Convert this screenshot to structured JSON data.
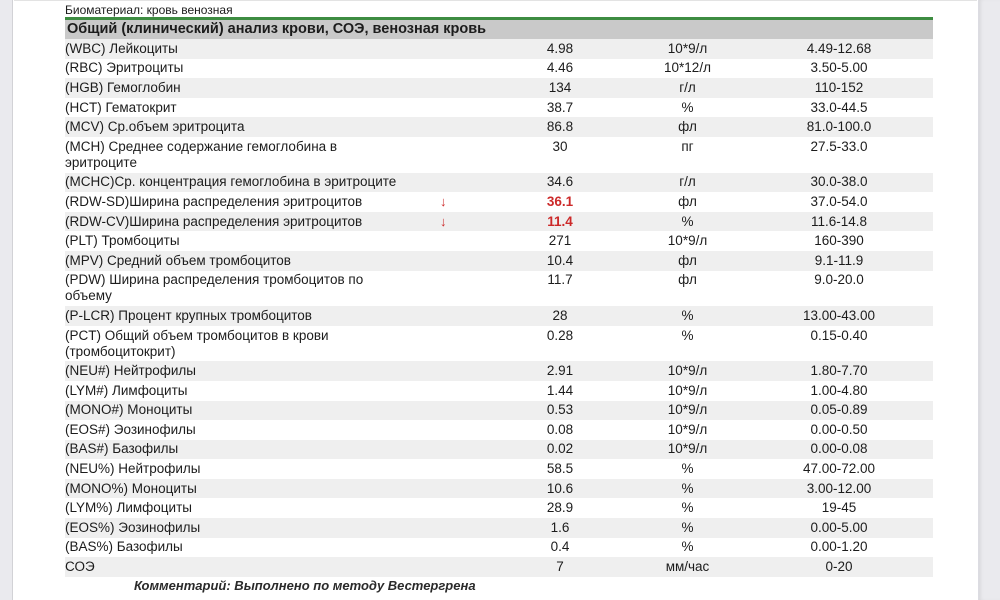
{
  "page": {
    "biomaterial": "Биоматериал: кровь венозная",
    "section_title": "Общий (клинический) анализ крови, СОЭ,  венозная кровь",
    "comment": "Комментарий: Выполнено по методу Вестергрена"
  },
  "colors": {
    "accent_green": "#3d8c41",
    "section_header_bg": "#c9c9c9",
    "row_stripe_bg": "#efefef",
    "abnormal_red": "#cc2929"
  },
  "table": {
    "rows": [
      {
        "name": "(WBC) Лейкоциты",
        "flag": "",
        "value": "4.98",
        "unit": "10*9/л",
        "range": "4.49-12.68",
        "abnormal": false
      },
      {
        "name": "(RBC) Эритроциты",
        "flag": "",
        "value": "4.46",
        "unit": "10*12/л",
        "range": "3.50-5.00",
        "abnormal": false
      },
      {
        "name": "(HGB) Гемоглобин",
        "flag": "",
        "value": "134",
        "unit": "г/л",
        "range": "110-152",
        "abnormal": false
      },
      {
        "name": "(HCT) Гематокрит",
        "flag": "",
        "value": "38.7",
        "unit": "%",
        "range": "33.0-44.5",
        "abnormal": false
      },
      {
        "name": "(MCV) Ср.объем эритроцита",
        "flag": "",
        "value": "86.8",
        "unit": "фл",
        "range": "81.0-100.0",
        "abnormal": false
      },
      {
        "name": "(MCH) Среднее содержание гемоглобина в эритроците",
        "flag": "",
        "value": "30",
        "unit": "пг",
        "range": "27.5-33.0",
        "abnormal": false
      },
      {
        "name": "(MCHC)Ср. концентрация гемоглобина в эритроците",
        "flag": "",
        "value": "34.6",
        "unit": "г/л",
        "range": "30.0-38.0",
        "abnormal": false
      },
      {
        "name": "(RDW-SD)Ширина распределения эритроцитов",
        "flag": "↓",
        "value": "36.1",
        "unit": "фл",
        "range": "37.0-54.0",
        "abnormal": true
      },
      {
        "name": "(RDW-CV)Ширина распределения эритроцитов",
        "flag": "↓",
        "value": "11.4",
        "unit": "%",
        "range": "11.6-14.8",
        "abnormal": true
      },
      {
        "name": "(PLT) Тромбоциты",
        "flag": "",
        "value": "271",
        "unit": "10*9/л",
        "range": "160-390",
        "abnormal": false
      },
      {
        "name": "(MPV) Средний объем тромбоцитов",
        "flag": "",
        "value": "10.4",
        "unit": "фл",
        "range": "9.1-11.9",
        "abnormal": false
      },
      {
        "name": "(PDW) Ширина распределения тромбоцитов по объему",
        "flag": "",
        "value": "11.7",
        "unit": "фл",
        "range": "9.0-20.0",
        "abnormal": false
      },
      {
        "name": "(P-LCR) Процент крупных тромбоцитов",
        "flag": "",
        "value": "28",
        "unit": "%",
        "range": "13.00-43.00",
        "abnormal": false
      },
      {
        "name": "(PCT) Общий объем тромбоцитов в крови (тромбоцитокрит)",
        "flag": "",
        "value": "0.28",
        "unit": "%",
        "range": "0.15-0.40",
        "abnormal": false
      },
      {
        "name": "(NEU#) Нейтрофилы",
        "flag": "",
        "value": "2.91",
        "unit": "10*9/л",
        "range": "1.80-7.70",
        "abnormal": false
      },
      {
        "name": "(LYM#) Лимфоциты",
        "flag": "",
        "value": "1.44",
        "unit": "10*9/л",
        "range": "1.00-4.80",
        "abnormal": false
      },
      {
        "name": "(MONO#) Моноциты",
        "flag": "",
        "value": "0.53",
        "unit": "10*9/л",
        "range": "0.05-0.89",
        "abnormal": false
      },
      {
        "name": "(EOS#) Эозинофилы",
        "flag": "",
        "value": "0.08",
        "unit": "10*9/л",
        "range": "0.00-0.50",
        "abnormal": false
      },
      {
        "name": "(BAS#) Базофилы",
        "flag": "",
        "value": "0.02",
        "unit": "10*9/л",
        "range": "0.00-0.08",
        "abnormal": false
      },
      {
        "name": "(NEU%) Нейтрофилы",
        "flag": "",
        "value": "58.5",
        "unit": "%",
        "range": "47.00-72.00",
        "abnormal": false
      },
      {
        "name": "(MONO%) Моноциты",
        "flag": "",
        "value": "10.6",
        "unit": "%",
        "range": "3.00-12.00",
        "abnormal": false
      },
      {
        "name": "(LYM%) Лимфоциты",
        "flag": "",
        "value": "28.9",
        "unit": "%",
        "range": "19-45",
        "abnormal": false
      },
      {
        "name": "(EOS%) Эозинофилы",
        "flag": "",
        "value": "1.6",
        "unit": "%",
        "range": "0.00-5.00",
        "abnormal": false
      },
      {
        "name": "(BAS%) Базофилы",
        "flag": "",
        "value": "0.4",
        "unit": "%",
        "range": "0.00-1.20",
        "abnormal": false
      },
      {
        "name": "СОЭ",
        "flag": "",
        "value": "7",
        "unit": "мм/час",
        "range": "0-20",
        "abnormal": false
      }
    ]
  }
}
